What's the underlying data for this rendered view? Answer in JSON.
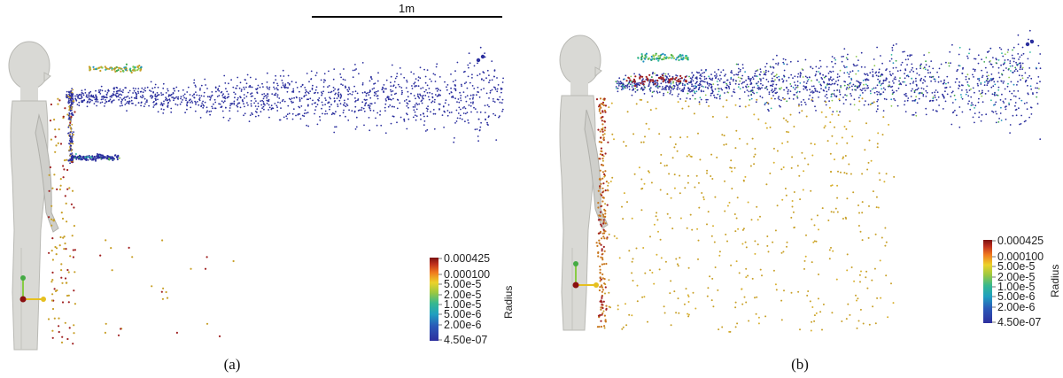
{
  "scale_bar": {
    "label": "1m"
  },
  "panels": [
    {
      "caption": "(a)",
      "legend": {
        "title": "Radius",
        "labels": [
          "0.000425",
          "0.000100",
          "5.00e-5",
          "2.00e-5",
          "1.00e-5",
          "5.00e-6",
          "2.00e-6",
          "4.50e-07"
        ]
      }
    },
    {
      "caption": "(b)",
      "legend": {
        "title": "Radius",
        "labels": [
          "0.000425",
          "0.000100",
          "5.00e-5",
          "2.00e-5",
          "1.00e-5",
          "5.00e-6",
          "2.00e-6",
          "4.50e-07"
        ]
      }
    }
  ],
  "colors": {
    "figure": "#d9d9d5",
    "figure_edge": "#b9b9b4",
    "small_particles": "#2b2f9e",
    "medium_particles": "#c8a028",
    "large_particles": "#a02020",
    "colormap": [
      "#2d2e9e",
      "#1f8fbf",
      "#2fb8a0",
      "#8cc84a",
      "#e8d62a",
      "#f08a1e",
      "#c0301e",
      "#7a1010"
    ]
  }
}
